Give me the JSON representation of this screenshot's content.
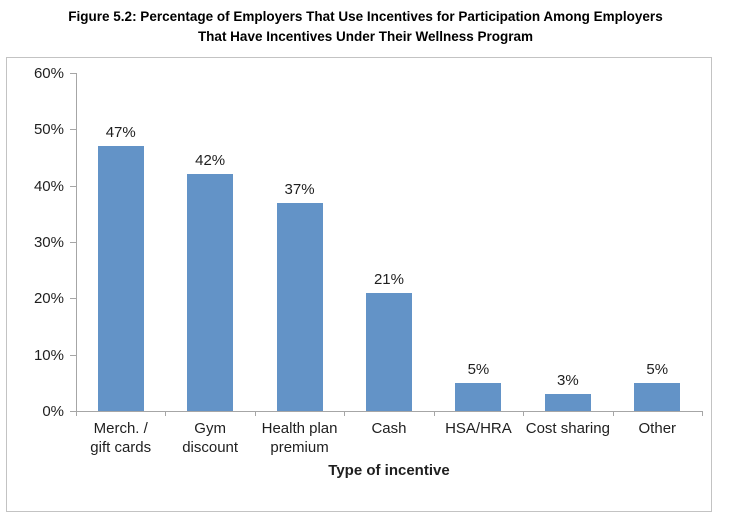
{
  "title": {
    "line1": "Figure 5.2: Percentage of Employers That Use Incentives for Participation Among Employers",
    "line2": "That Have Incentives Under Their Wellness Program"
  },
  "chart_data": {
    "type": "bar",
    "title": "Figure 5.2: Percentage of Employers That Use Incentives for Participation Among Employers That Have Incentives Under Their Wellness Program",
    "categories": [
      "Merch. / gift cards",
      "Gym discount",
      "Health plan premium",
      "Cash",
      "HSA/HRA",
      "Cost sharing",
      "Other"
    ],
    "category_lines": [
      [
        "Merch. /",
        "gift cards"
      ],
      [
        "Gym",
        "discount"
      ],
      [
        "Health plan",
        "premium"
      ],
      [
        "Cash"
      ],
      [
        "HSA/HRA"
      ],
      [
        "Cost sharing"
      ],
      [
        "Other"
      ]
    ],
    "values": [
      47,
      42,
      37,
      21,
      5,
      3,
      5
    ],
    "value_labels": [
      "47%",
      "42%",
      "37%",
      "21%",
      "5%",
      "3%",
      "5%"
    ],
    "xlabel": "Type of incentive",
    "ylabel": "",
    "ylim": [
      0,
      60
    ],
    "ytick_step": 10,
    "ytick_labels": [
      "0%",
      "10%",
      "20%",
      "30%",
      "40%",
      "50%",
      "60%"
    ],
    "grid": false,
    "legend_position": "none",
    "bar_color": "#6393c7",
    "axis_color": "#a6a6a6",
    "text_color": "#1f1f1f",
    "frame_border_color": "#c3c3c3"
  }
}
